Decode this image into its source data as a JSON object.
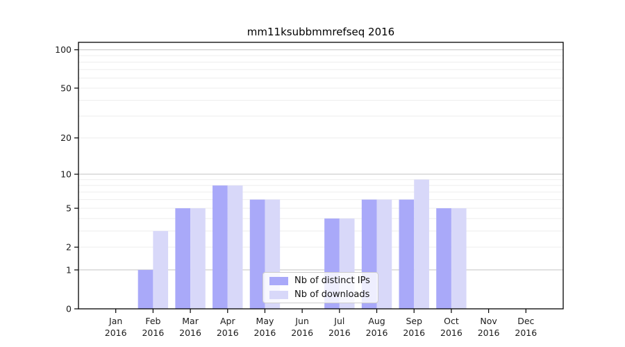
{
  "title": "mm11ksubbmmrefseq 2016",
  "chart_data": {
    "type": "bar",
    "title": "mm11ksubbmmrefseq 2016",
    "categories": [
      "Jan",
      "Feb",
      "Mar",
      "Apr",
      "May",
      "Jun",
      "Jul",
      "Aug",
      "Sep",
      "Oct",
      "Nov",
      "Dec"
    ],
    "category_year": "2016",
    "series": [
      {
        "name": "Nb of distinct IPs",
        "color": "#a9a9f9",
        "values": [
          0,
          1,
          5,
          8,
          6,
          0,
          4,
          6,
          6,
          5,
          0,
          0
        ]
      },
      {
        "name": "Nb of downloads",
        "color": "#d8d8f9",
        "values": [
          0,
          3,
          5,
          8,
          6,
          0,
          4,
          6,
          9,
          5,
          0,
          0
        ]
      }
    ],
    "xlabel": "",
    "ylabel": "",
    "y_scale": "log10(1+v)",
    "ylim": [
      0,
      100
    ],
    "y_ticks": [
      100,
      50,
      20,
      10,
      5,
      2,
      1,
      0
    ],
    "major_gridlines": [
      100,
      10,
      1
    ],
    "minor_gridlines": [
      90,
      80,
      70,
      60,
      50,
      40,
      30,
      20,
      9,
      8,
      7,
      6,
      5,
      4,
      3,
      2
    ],
    "grid": true,
    "legend_position": "lower center"
  },
  "legend": {
    "items": [
      {
        "label": "Nb of distinct IPs"
      },
      {
        "label": "Nb of downloads"
      }
    ]
  },
  "colors": {
    "bar_dark": "#a9a9f9",
    "bar_light": "#d8d8f9",
    "major_grid": "#c3c3c3",
    "minor_grid": "#ededed",
    "frame": "#000000",
    "legend_border": "#cccccc"
  }
}
